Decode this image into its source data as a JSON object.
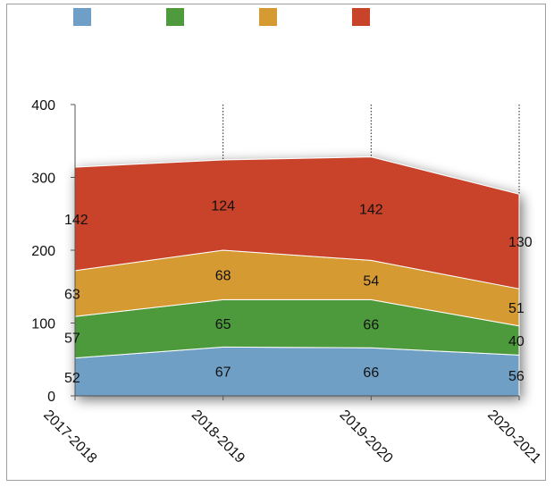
{
  "chart_data": {
    "type": "area",
    "stacked": true,
    "categories": [
      "2017-2018",
      "2018-2019",
      "2019-2020",
      "2020-2021"
    ],
    "series": [
      {
        "color": "#6f9fc6",
        "values": [
          52,
          67,
          66,
          56
        ]
      },
      {
        "color": "#4e9a3c",
        "values": [
          57,
          65,
          66,
          40
        ]
      },
      {
        "color": "#d69a33",
        "values": [
          63,
          68,
          54,
          51
        ]
      },
      {
        "color": "#c9432a",
        "values": [
          142,
          124,
          142,
          130
        ]
      }
    ],
    "yticks": [
      "0",
      "100",
      "200",
      "300",
      "400"
    ],
    "ylim": [
      0,
      400
    ],
    "legend": "top-left",
    "title": "",
    "xlabel": "",
    "ylabel": "",
    "grid": "vertical dotted"
  }
}
